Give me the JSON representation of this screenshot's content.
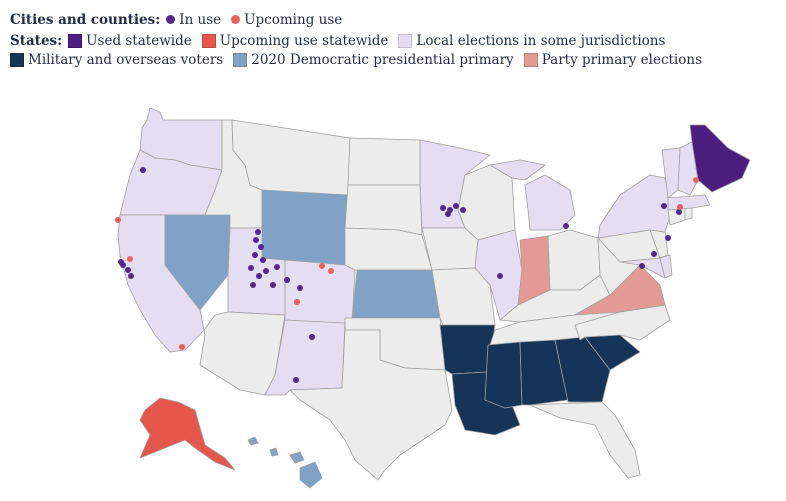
{
  "legend": {
    "cities_header": "Cities and counties:",
    "in_use": "In use",
    "upcoming_use": "Upcoming use",
    "states_header": "States:",
    "used_statewide": "Used statewide",
    "upcoming_statewide": "Upcoming use statewide",
    "local_elections": "Local elections in some jurisdictions",
    "military_overseas": "Military and overseas voters",
    "dem_primary_2020": "2020 Democratic presidential primary",
    "party_primary": "Party primary elections"
  },
  "colors": {
    "in_use_dot": "#4f2a8c",
    "upcoming_dot": "#e8625a",
    "used_statewide": "#4b1d7e",
    "upcoming_statewide": "#e5564b",
    "local_elections": "#e5ddf2",
    "military_overseas": "#163457",
    "dem_primary_2020": "#7fa2c6",
    "party_primary": "#e49a94",
    "no_use": "#ececea",
    "border": "#a0a0a0"
  },
  "state_categories": {
    "used_statewide": [
      "Maine"
    ],
    "upcoming_statewide": [
      "Alaska"
    ],
    "local_elections": [
      "Washington",
      "Oregon",
      "California",
      "Utah",
      "Colorado",
      "New Mexico",
      "Minnesota",
      "Michigan",
      "Illinois",
      "New York",
      "Maryland",
      "Delaware",
      "Massachusetts",
      "Vermont",
      "New Hampshire"
    ],
    "military_overseas": [
      "Arkansas",
      "Louisiana",
      "Mississippi",
      "Alabama",
      "Georgia",
      "South Carolina"
    ],
    "dem_primary_2020": [
      "Nevada",
      "Wyoming",
      "Kansas",
      "Hawaii"
    ],
    "party_primary": [
      "Indiana",
      "Virginia"
    ]
  }
}
